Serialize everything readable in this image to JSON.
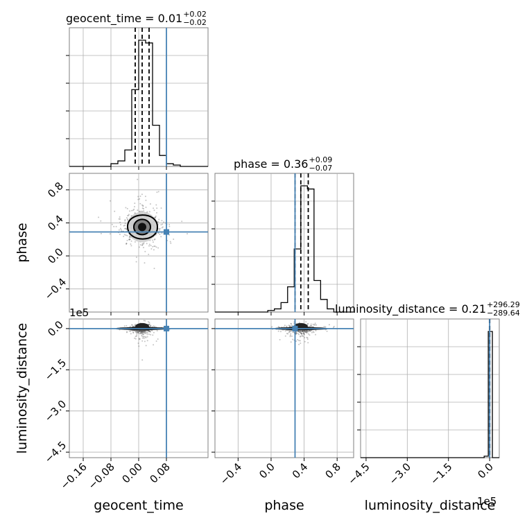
{
  "chart_data": {
    "type": "corner",
    "parameters": [
      {
        "name": "geocent_time",
        "label": "geocent_time",
        "median": "0.01",
        "plus": "+0.02",
        "minus": "−0.02",
        "range": [
          -0.2,
          0.2
        ],
        "truth": 0.08
      },
      {
        "name": "phase",
        "label": "phase",
        "median": "0.36",
        "plus": "+0.09",
        "minus": "−0.07",
        "range": [
          -0.68,
          1.0
        ],
        "truth": 0.29
      },
      {
        "name": "luminosity_distance",
        "label": "luminosity_distance",
        "median": "0.21",
        "plus": "+296.29",
        "minus": "−289.64",
        "range": [
          -470000,
          35000
        ],
        "truth": 0
      }
    ],
    "titles": [
      {
        "param": "geocent_time",
        "text": "geocent_time = 0.01"
      },
      {
        "param": "phase",
        "text": "phase = 0.36"
      },
      {
        "param": "luminosity_distance",
        "text": "luminosity_distance = 0.21"
      }
    ],
    "offset_labels": {
      "y": "1e5",
      "x": "1e5"
    },
    "axis_ticks": {
      "geocent_time": {
        "values": [
          -0.16,
          -0.08,
          0.0,
          0.08
        ],
        "labels": [
          "−0.16",
          "−0.08",
          "0.00",
          "0.08"
        ]
      },
      "phase": {
        "values": [
          -0.4,
          0.0,
          0.4,
          0.8
        ],
        "labels": [
          "−0.4",
          "0.0",
          "0.4",
          "0.8"
        ]
      },
      "luminosity_distance": {
        "values": [
          -450000,
          -300000,
          -150000,
          0
        ],
        "labels": [
          "−4.5",
          "−3.0",
          "−1.5",
          "0.0"
        ]
      }
    },
    "quantiles": {
      "geocent_time": [
        -0.01,
        0.01,
        0.03
      ],
      "phase": [
        0.29,
        0.36,
        0.45
      ],
      "luminosity_distance": [
        -289.43,
        0.21,
        296.5
      ]
    },
    "histograms": {
      "geocent_time": {
        "edges": [
          -0.2,
          -0.18,
          -0.16,
          -0.14,
          -0.12,
          -0.1,
          -0.08,
          -0.06,
          -0.04,
          -0.02,
          0.0,
          0.02,
          0.04,
          0.06,
          0.08,
          0.1,
          0.12,
          0.14,
          0.16,
          0.18,
          0.2
        ],
        "counts": [
          0,
          0,
          0,
          0,
          0,
          0,
          1,
          2,
          6,
          28,
          46,
          45,
          15,
          4,
          1,
          0.5,
          0,
          0,
          0,
          0
        ]
      },
      "phase": {
        "edges": [
          -0.68,
          -0.6,
          -0.52,
          -0.44,
          -0.36,
          -0.28,
          -0.2,
          -0.12,
          -0.04,
          0.04,
          0.12,
          0.2,
          0.28,
          0.36,
          0.44,
          0.52,
          0.6,
          0.68,
          0.76,
          0.84,
          0.92,
          1.0
        ],
        "counts": [
          0,
          0,
          0,
          0,
          0,
          0,
          0,
          0,
          0.5,
          1,
          3,
          8,
          20,
          40,
          39,
          10,
          4,
          1,
          0,
          0,
          0
        ]
      },
      "luminosity_distance": {
        "edges": [
          -470000,
          -445000,
          -420000,
          -395000,
          -370000,
          -345000,
          -320000,
          -295000,
          -270000,
          -245000,
          -220000,
          -195000,
          -170000,
          -145000,
          -120000,
          -95000,
          -70000,
          -45000,
          -20000,
          -5000,
          10000,
          35000
        ],
        "counts": [
          0,
          0,
          0,
          0,
          0,
          0,
          0,
          0,
          0,
          0,
          0,
          0,
          0,
          0,
          0,
          0,
          0,
          0,
          0.5,
          43,
          0
        ]
      }
    },
    "pairs": [
      {
        "x": "geocent_time",
        "y": "phase",
        "center": [
          0.01,
          0.35
        ]
      },
      {
        "x": "geocent_time",
        "y": "luminosity_distance",
        "center": [
          0.01,
          0
        ]
      },
      {
        "x": "phase",
        "y": "luminosity_distance",
        "center": [
          0.36,
          0
        ]
      }
    ],
    "grid": true
  }
}
